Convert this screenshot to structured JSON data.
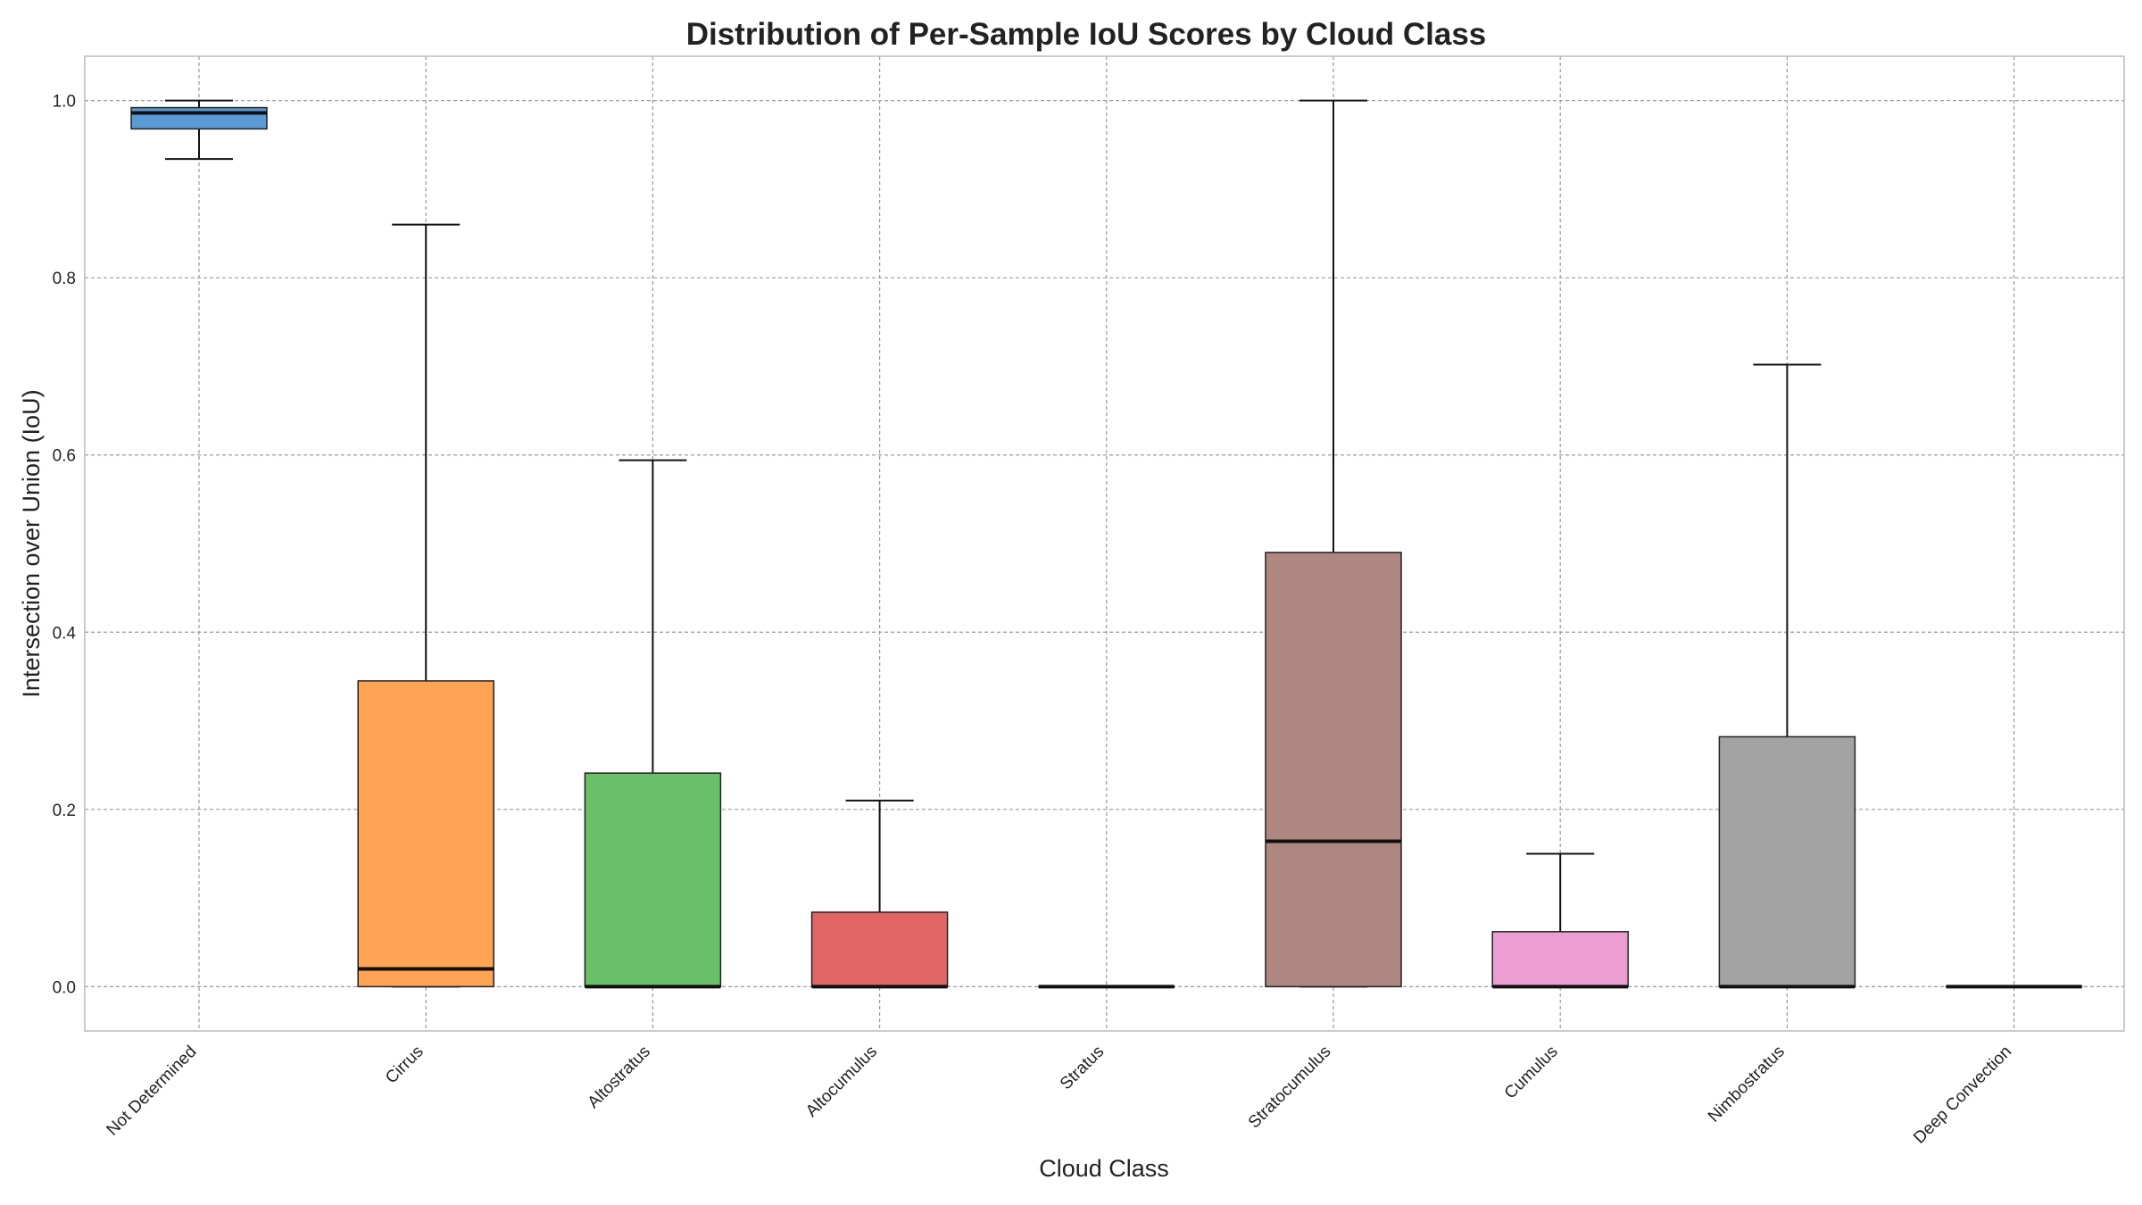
{
  "chart_data": {
    "type": "box",
    "title": "Distribution of Per-Sample IoU Scores by Cloud Class",
    "xlabel": "Cloud Class",
    "ylabel": "Intersection over Union (IoU)",
    "ylim": [
      -0.05,
      1.05
    ],
    "yticks": [
      "0.0",
      "0.2",
      "0.4",
      "0.6",
      "0.8",
      "1.0"
    ],
    "grid": true,
    "categories": [
      "Not Determined",
      "Cirrus",
      "Altostratus",
      "Altocumulus",
      "Stratus",
      "Stratocumulus",
      "Cumulus",
      "Nimbostratus",
      "Deep Convection"
    ],
    "boxes": [
      {
        "name": "Not Determined",
        "whisker_low": 0.934,
        "q1": 0.968,
        "median": 0.986,
        "q3": 0.992,
        "whisker_high": 1.0,
        "color": "#5b9bd5"
      },
      {
        "name": "Cirrus",
        "whisker_low": 0.0,
        "q1": 0.0,
        "median": 0.02,
        "q3": 0.345,
        "whisker_high": 0.86,
        "color": "#ffa354"
      },
      {
        "name": "Altostratus",
        "whisker_low": 0.0,
        "q1": 0.0,
        "median": 0.0,
        "q3": 0.241,
        "whisker_high": 0.594,
        "color": "#6abf69"
      },
      {
        "name": "Altocumulus",
        "whisker_low": 0.0,
        "q1": 0.0,
        "median": 0.0,
        "q3": 0.084,
        "whisker_high": 0.21,
        "color": "#e06666"
      },
      {
        "name": "Stratus",
        "whisker_low": 0.0,
        "q1": 0.0,
        "median": 0.0,
        "q3": 0.0,
        "whisker_high": 0.0,
        "color": "#9c7ec0"
      },
      {
        "name": "Stratocumulus",
        "whisker_low": 0.0,
        "q1": 0.0,
        "median": 0.164,
        "q3": 0.49,
        "whisker_high": 1.0,
        "color": "#ae8780"
      },
      {
        "name": "Cumulus",
        "whisker_low": 0.0,
        "q1": 0.0,
        "median": 0.0,
        "q3": 0.062,
        "whisker_high": 0.15,
        "color": "#ec9ed3"
      },
      {
        "name": "Nimbostratus",
        "whisker_low": 0.0,
        "q1": 0.0,
        "median": 0.0,
        "q3": 0.282,
        "whisker_high": 0.702,
        "color": "#a3a3a3"
      },
      {
        "name": "Deep Convection",
        "whisker_low": 0.0,
        "q1": 0.0,
        "median": 0.0,
        "q3": 0.0,
        "whisker_high": 0.0,
        "color": "#cccc66"
      }
    ]
  }
}
